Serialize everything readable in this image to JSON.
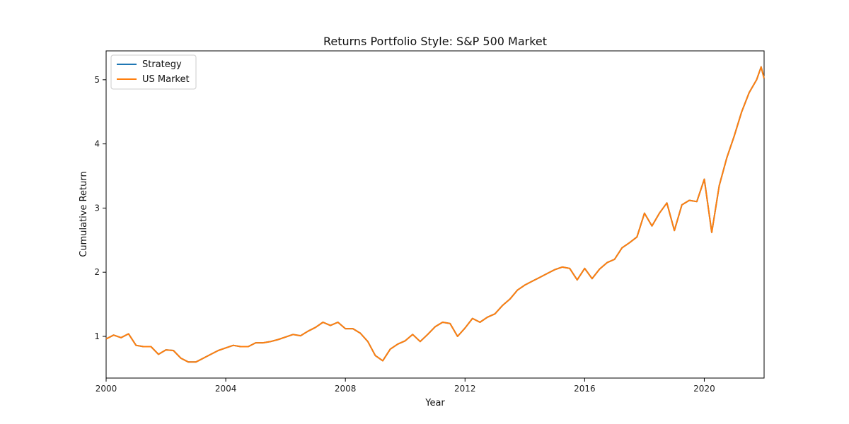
{
  "chart_data": {
    "type": "line",
    "title": "Returns Portfolio Style: S&P 500 Market",
    "xlabel": "Year",
    "ylabel": "Cumulative Return",
    "xlim": [
      2000,
      2022
    ],
    "ylim": [
      0.35,
      5.45
    ],
    "xticks": [
      2000,
      2004,
      2008,
      2012,
      2016,
      2020
    ],
    "yticks": [
      1,
      2,
      3,
      4,
      5
    ],
    "legend_position": "top-left",
    "grid": false,
    "series": [
      {
        "name": "Strategy",
        "color": "#1f77b4",
        "x": [
          2000.0,
          2000.25,
          2000.5,
          2000.75,
          2001.0,
          2001.25,
          2001.5,
          2001.75,
          2002.0,
          2002.25,
          2002.5,
          2002.75,
          2003.0,
          2003.25,
          2003.5,
          2003.75,
          2004.0,
          2004.25,
          2004.5,
          2004.75,
          2005.0,
          2005.25,
          2005.5,
          2005.75,
          2006.0,
          2006.25,
          2006.5,
          2006.75,
          2007.0,
          2007.25,
          2007.5,
          2007.75,
          2008.0,
          2008.25,
          2008.5,
          2008.75,
          2009.0,
          2009.25,
          2009.5,
          2009.75,
          2010.0,
          2010.25,
          2010.5,
          2010.75,
          2011.0,
          2011.25,
          2011.5,
          2011.75,
          2012.0,
          2012.25,
          2012.5,
          2012.75,
          2013.0,
          2013.25,
          2013.5,
          2013.75,
          2014.0,
          2014.25,
          2014.5,
          2014.75,
          2015.0,
          2015.25,
          2015.5,
          2015.75,
          2016.0,
          2016.25,
          2016.5,
          2016.75,
          2017.0,
          2017.25,
          2017.5,
          2017.75,
          2018.0,
          2018.25,
          2018.5,
          2018.75,
          2019.0,
          2019.25,
          2019.5,
          2019.75,
          2020.0,
          2020.25,
          2020.5,
          2020.75,
          2021.0,
          2021.25,
          2021.5,
          2021.75,
          2021.9,
          2022.0
        ],
        "values": [
          0.96,
          1.02,
          0.98,
          1.04,
          0.86,
          0.84,
          0.84,
          0.72,
          0.79,
          0.78,
          0.66,
          0.6,
          0.6,
          0.66,
          0.72,
          0.78,
          0.82,
          0.86,
          0.84,
          0.84,
          0.9,
          0.9,
          0.92,
          0.95,
          0.99,
          1.03,
          1.01,
          1.08,
          1.14,
          1.22,
          1.17,
          1.22,
          1.12,
          1.12,
          1.05,
          0.92,
          0.7,
          0.62,
          0.8,
          0.88,
          0.93,
          1.03,
          0.92,
          1.03,
          1.15,
          1.22,
          1.2,
          1.0,
          1.13,
          1.28,
          1.22,
          1.3,
          1.35,
          1.48,
          1.58,
          1.72,
          1.8,
          1.86,
          1.92,
          1.98,
          2.04,
          2.08,
          2.06,
          1.88,
          2.06,
          1.9,
          2.05,
          2.15,
          2.2,
          2.38,
          2.46,
          2.55,
          2.92,
          2.72,
          2.92,
          3.08,
          2.65,
          3.05,
          3.12,
          3.1,
          3.45,
          2.62,
          3.35,
          3.78,
          4.12,
          4.5,
          4.8,
          5.0,
          5.2,
          5.02
        ]
      },
      {
        "name": "US Market",
        "color": "#ff7f0e",
        "x": [
          2000.0,
          2000.25,
          2000.5,
          2000.75,
          2001.0,
          2001.25,
          2001.5,
          2001.75,
          2002.0,
          2002.25,
          2002.5,
          2002.75,
          2003.0,
          2003.25,
          2003.5,
          2003.75,
          2004.0,
          2004.25,
          2004.5,
          2004.75,
          2005.0,
          2005.25,
          2005.5,
          2005.75,
          2006.0,
          2006.25,
          2006.5,
          2006.75,
          2007.0,
          2007.25,
          2007.5,
          2007.75,
          2008.0,
          2008.25,
          2008.5,
          2008.75,
          2009.0,
          2009.25,
          2009.5,
          2009.75,
          2010.0,
          2010.25,
          2010.5,
          2010.75,
          2011.0,
          2011.25,
          2011.5,
          2011.75,
          2012.0,
          2012.25,
          2012.5,
          2012.75,
          2013.0,
          2013.25,
          2013.5,
          2013.75,
          2014.0,
          2014.25,
          2014.5,
          2014.75,
          2015.0,
          2015.25,
          2015.5,
          2015.75,
          2016.0,
          2016.25,
          2016.5,
          2016.75,
          2017.0,
          2017.25,
          2017.5,
          2017.75,
          2018.0,
          2018.25,
          2018.5,
          2018.75,
          2019.0,
          2019.25,
          2019.5,
          2019.75,
          2020.0,
          2020.25,
          2020.5,
          2020.75,
          2021.0,
          2021.25,
          2021.5,
          2021.75,
          2021.9,
          2022.0
        ],
        "values": [
          0.96,
          1.02,
          0.98,
          1.04,
          0.86,
          0.84,
          0.84,
          0.72,
          0.79,
          0.78,
          0.66,
          0.6,
          0.6,
          0.66,
          0.72,
          0.78,
          0.82,
          0.86,
          0.84,
          0.84,
          0.9,
          0.9,
          0.92,
          0.95,
          0.99,
          1.03,
          1.01,
          1.08,
          1.14,
          1.22,
          1.17,
          1.22,
          1.12,
          1.12,
          1.05,
          0.92,
          0.7,
          0.62,
          0.8,
          0.88,
          0.93,
          1.03,
          0.92,
          1.03,
          1.15,
          1.22,
          1.2,
          1.0,
          1.13,
          1.28,
          1.22,
          1.3,
          1.35,
          1.48,
          1.58,
          1.72,
          1.8,
          1.86,
          1.92,
          1.98,
          2.04,
          2.08,
          2.06,
          1.88,
          2.06,
          1.9,
          2.05,
          2.15,
          2.2,
          2.38,
          2.46,
          2.55,
          2.92,
          2.72,
          2.92,
          3.08,
          2.65,
          3.05,
          3.12,
          3.1,
          3.45,
          2.62,
          3.35,
          3.78,
          4.12,
          4.5,
          4.8,
          5.0,
          5.2,
          5.02
        ]
      }
    ]
  }
}
